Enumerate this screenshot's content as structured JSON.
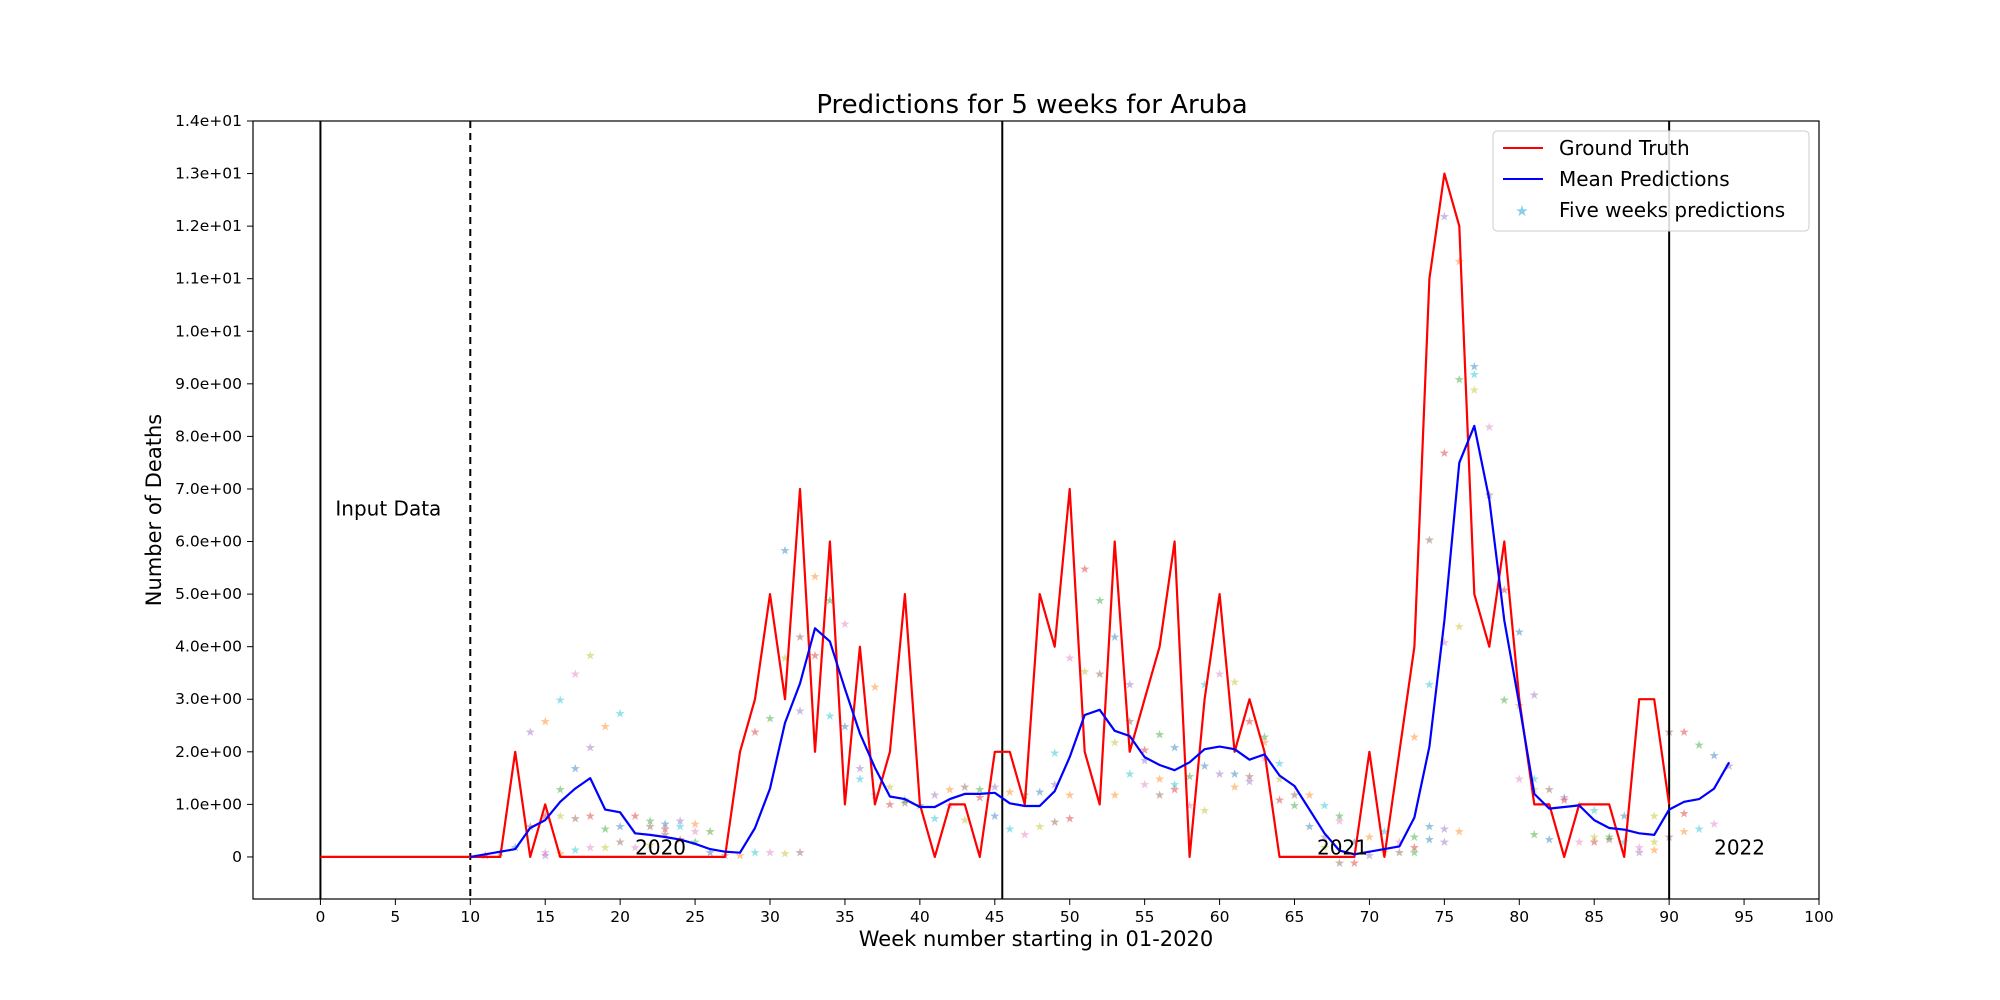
{
  "chart_data": {
    "type": "line",
    "title": "Predictions for 5 weeks for Aruba",
    "xlabel": "Week number starting in 01-2020",
    "ylabel": "Number of Deaths",
    "xlim": [
      -4.5,
      100
    ],
    "ylim": [
      -0.8,
      14
    ],
    "xticks": [
      0,
      5,
      10,
      15,
      20,
      25,
      30,
      35,
      40,
      45,
      50,
      55,
      60,
      65,
      70,
      75,
      80,
      85,
      90,
      95,
      100
    ],
    "xtick_labels": [
      "0",
      "5",
      "10",
      "15",
      "20",
      "25",
      "30",
      "35",
      "40",
      "45",
      "50",
      "55",
      "60",
      "65",
      "70",
      "75",
      "80",
      "85",
      "90",
      "95",
      "100"
    ],
    "yticks": [
      0,
      1,
      2,
      3,
      4,
      5,
      6,
      7,
      8,
      9,
      10,
      11,
      12,
      13,
      14
    ],
    "ytick_labels": [
      "0",
      "1.0e+00",
      "2.0e+00",
      "3.0e+00",
      "4.0e+00",
      "5.0e+00",
      "6.0e+00",
      "7.0e+00",
      "8.0e+00",
      "9.0e+00",
      "1.0e+01",
      "1.1e+01",
      "1.2e+01",
      "1.3e+01",
      "1.4e+01"
    ],
    "grid": false,
    "legend_position": "top-right",
    "vlines": [
      {
        "x": 0,
        "style": "solid"
      },
      {
        "x": 10,
        "style": "dashed"
      },
      {
        "x": 45.5,
        "style": "solid"
      },
      {
        "x": 90,
        "style": "solid"
      }
    ],
    "annotations": [
      {
        "text": "Input Data",
        "x": 1,
        "y": 6.5
      },
      {
        "text": "2020",
        "x": 21,
        "y": 0.05
      },
      {
        "text": "2021",
        "x": 66.5,
        "y": 0.05
      },
      {
        "text": "2022",
        "x": 93,
        "y": 0.05
      }
    ],
    "series": [
      {
        "name": "Ground Truth",
        "color": "#ff0000",
        "style": "line",
        "x": [
          0,
          1,
          2,
          3,
          4,
          5,
          6,
          7,
          8,
          9,
          10,
          11,
          12,
          13,
          14,
          15,
          16,
          17,
          18,
          19,
          20,
          21,
          22,
          23,
          24,
          25,
          26,
          27,
          28,
          29,
          30,
          31,
          32,
          33,
          34,
          35,
          36,
          37,
          38,
          39,
          40,
          41,
          42,
          43,
          44,
          45,
          46,
          47,
          48,
          49,
          50,
          51,
          52,
          53,
          54,
          55,
          56,
          57,
          58,
          59,
          60,
          61,
          62,
          63,
          64,
          65,
          66,
          67,
          68,
          69,
          70,
          71,
          72,
          73,
          74,
          75,
          76,
          77,
          78,
          79,
          80,
          81,
          82,
          83,
          84,
          85,
          86,
          87,
          88,
          89,
          90
        ],
        "y": [
          0,
          0,
          0,
          0,
          0,
          0,
          0,
          0,
          0,
          0,
          0,
          0,
          0,
          2,
          0,
          1,
          0,
          0,
          0,
          0,
          0,
          0,
          0,
          0,
          0,
          0,
          0,
          0,
          2,
          3,
          5,
          3,
          7,
          2,
          6,
          1,
          4,
          1,
          2,
          5,
          1,
          0,
          1,
          1,
          0,
          2,
          2,
          1,
          5,
          4,
          7,
          2,
          1,
          6,
          2,
          3,
          4,
          6,
          0,
          3,
          5,
          2,
          3,
          2,
          0,
          0,
          0,
          0,
          0,
          0,
          2,
          0,
          2,
          4,
          11,
          13,
          12,
          5,
          4,
          6,
          3,
          1,
          1,
          0,
          1,
          1,
          1,
          0,
          3,
          3,
          1
        ]
      },
      {
        "name": "Mean Predictions",
        "color": "#0000ff",
        "style": "line",
        "x": [
          10,
          11,
          12,
          13,
          14,
          15,
          16,
          17,
          18,
          19,
          20,
          21,
          22,
          23,
          24,
          25,
          26,
          27,
          28,
          29,
          30,
          31,
          32,
          33,
          34,
          35,
          36,
          37,
          38,
          39,
          40,
          41,
          42,
          43,
          44,
          45,
          46,
          47,
          48,
          49,
          50,
          51,
          52,
          53,
          54,
          55,
          56,
          57,
          58,
          59,
          60,
          61,
          62,
          63,
          64,
          65,
          66,
          67,
          68,
          69,
          70,
          71,
          72,
          73,
          74,
          75,
          76,
          77,
          78,
          79,
          80,
          81,
          82,
          83,
          84,
          85,
          86,
          87,
          88,
          89,
          90,
          91,
          92,
          93,
          94
        ],
        "y": [
          0,
          0.05,
          0.1,
          0.15,
          0.55,
          0.7,
          1.05,
          1.3,
          1.5,
          0.9,
          0.85,
          0.45,
          0.42,
          0.38,
          0.33,
          0.25,
          0.15,
          0.1,
          0.08,
          0.55,
          1.3,
          2.55,
          3.3,
          4.35,
          4.1,
          3.2,
          2.35,
          1.7,
          1.15,
          1.1,
          0.95,
          0.95,
          1.1,
          1.2,
          1.2,
          1.22,
          1.02,
          0.97,
          0.97,
          1.25,
          1.9,
          2.7,
          2.8,
          2.4,
          2.3,
          1.9,
          1.75,
          1.65,
          1.8,
          2.05,
          2.1,
          2.05,
          1.85,
          1.95,
          1.55,
          1.35,
          0.9,
          0.45,
          0.12,
          0.05,
          0.1,
          0.15,
          0.2,
          0.75,
          2.1,
          4.5,
          7.5,
          8.2,
          6.8,
          4.5,
          2.9,
          1.2,
          0.92,
          0.95,
          0.98,
          0.7,
          0.55,
          0.52,
          0.45,
          0.42,
          0.9,
          1.05,
          1.1,
          1.3,
          1.8
        ]
      },
      {
        "name": "Five weeks predictions",
        "color": "#87ceeb",
        "style": "scatter",
        "palette": [
          "#d62728",
          "#2ca02c",
          "#1f77b4",
          "#9467bd",
          "#ff7f0e",
          "#17becf",
          "#e377c2",
          "#bcbd22",
          "#8c564b"
        ],
        "points": [
          [
            11,
            0.05
          ],
          [
            12,
            0.1
          ],
          [
            13,
            0.2
          ],
          [
            14,
            2.4
          ],
          [
            15,
            2.6
          ],
          [
            16,
            3.0
          ],
          [
            17,
            3.5
          ],
          [
            18,
            3.85
          ],
          [
            14,
            0.6
          ],
          [
            15,
            0.8
          ],
          [
            16,
            1.3
          ],
          [
            17,
            1.7
          ],
          [
            18,
            2.1
          ],
          [
            19,
            2.5
          ],
          [
            20,
            2.75
          ],
          [
            15,
            0.1
          ],
          [
            16,
            0.8
          ],
          [
            17,
            0.75
          ],
          [
            18,
            0.8
          ],
          [
            19,
            0.55
          ],
          [
            20,
            0.6
          ],
          [
            15,
            0.05
          ],
          [
            16,
            0.08
          ],
          [
            17,
            0.15
          ],
          [
            18,
            0.2
          ],
          [
            19,
            0.2
          ],
          [
            20,
            0.3
          ],
          [
            21,
            0.8
          ],
          [
            22,
            0.7
          ],
          [
            23,
            0.65
          ],
          [
            24,
            0.7
          ],
          [
            25,
            0.65
          ],
          [
            26,
            0.5
          ],
          [
            21,
            0.2
          ],
          [
            22,
            0.25
          ],
          [
            23,
            0.45
          ],
          [
            24,
            0.35
          ],
          [
            25,
            0.3
          ],
          [
            26,
            0.1
          ],
          [
            27,
            0.05
          ],
          [
            28,
            0.05
          ],
          [
            29,
            0.1
          ],
          [
            30,
            0.1
          ],
          [
            31,
            0.08
          ],
          [
            32,
            0.1
          ],
          [
            29,
            2.4
          ],
          [
            30,
            2.65
          ],
          [
            31,
            5.85
          ],
          [
            32,
            2.8
          ],
          [
            33,
            5.35
          ],
          [
            34,
            2.7
          ],
          [
            35,
            4.45
          ],
          [
            31,
            3.8
          ],
          [
            32,
            4.2
          ],
          [
            33,
            3.85
          ],
          [
            34,
            4.9
          ],
          [
            35,
            2.5
          ],
          [
            36,
            1.7
          ],
          [
            37,
            3.25
          ],
          [
            36,
            1.5
          ],
          [
            37,
            1.2
          ],
          [
            38,
            1.35
          ],
          [
            39,
            1.05
          ],
          [
            38,
            1.02
          ],
          [
            39,
            1.1
          ],
          [
            40,
            1.0
          ],
          [
            41,
            1.2
          ],
          [
            42,
            1.3
          ],
          [
            41,
            0.75
          ],
          [
            42,
            1.0
          ],
          [
            43,
            0.72
          ],
          [
            43,
            1.35
          ],
          [
            44,
            1.15
          ],
          [
            44,
            1.3
          ],
          [
            45,
            0.8
          ],
          [
            45,
            1.35
          ],
          [
            46,
            1.25
          ],
          [
            46,
            0.55
          ],
          [
            47,
            0.45
          ],
          [
            48,
            0.6
          ],
          [
            49,
            0.68
          ],
          [
            50,
            0.75
          ],
          [
            47,
            1.2
          ],
          [
            48,
            1.25
          ],
          [
            49,
            1.4
          ],
          [
            50,
            1.2
          ],
          [
            49,
            2.0
          ],
          [
            50,
            3.8
          ],
          [
            51,
            3.55
          ],
          [
            52,
            3.5
          ],
          [
            51,
            5.5
          ],
          [
            52,
            4.9
          ],
          [
            53,
            4.2
          ],
          [
            54,
            3.3
          ],
          [
            53,
            1.2
          ],
          [
            54,
            1.6
          ],
          [
            55,
            1.4
          ],
          [
            53,
            2.2
          ],
          [
            54,
            2.6
          ],
          [
            55,
            2.05
          ],
          [
            56,
            2.35
          ],
          [
            57,
            2.1
          ],
          [
            55,
            1.85
          ],
          [
            56,
            1.5
          ],
          [
            57,
            1.4
          ],
          [
            58,
            1.0
          ],
          [
            59,
            0.9
          ],
          [
            56,
            1.2
          ],
          [
            57,
            1.3
          ],
          [
            58,
            1.55
          ],
          [
            59,
            1.75
          ],
          [
            60,
            1.6
          ],
          [
            61,
            1.35
          ],
          [
            59,
            3.3
          ],
          [
            60,
            3.5
          ],
          [
            61,
            3.35
          ],
          [
            62,
            1.55
          ],
          [
            62,
            2.6
          ],
          [
            63,
            2.3
          ],
          [
            61,
            1.6
          ],
          [
            62,
            1.45
          ],
          [
            63,
            2.2
          ],
          [
            64,
            1.8
          ],
          [
            63,
            1.9
          ],
          [
            64,
            1.5
          ],
          [
            65,
            1.2
          ],
          [
            64,
            1.1
          ],
          [
            65,
            1.0
          ],
          [
            66,
            0.6
          ],
          [
            67,
            0.4
          ],
          [
            66,
            1.2
          ],
          [
            67,
            1.0
          ],
          [
            68,
            0.7
          ],
          [
            67,
            0.2
          ],
          [
            68,
            -0.1
          ],
          [
            69,
            -0.1
          ],
          [
            68,
            0.8
          ],
          [
            69,
            0.3
          ],
          [
            70,
            0.05
          ],
          [
            70,
            0.4
          ],
          [
            71,
            0.5
          ],
          [
            72,
            0.3
          ],
          [
            71,
            0.1
          ],
          [
            72,
            0.1
          ],
          [
            73,
            0.2
          ],
          [
            73,
            0.4
          ],
          [
            74,
            0.35
          ],
          [
            75,
            0.3
          ],
          [
            73,
            2.3
          ],
          [
            74,
            3.3
          ],
          [
            75,
            4.1
          ],
          [
            76,
            4.4
          ],
          [
            74,
            6.05
          ],
          [
            75,
            7.7
          ],
          [
            76,
            9.1
          ],
          [
            77,
            9.35
          ],
          [
            75,
            12.2
          ],
          [
            76,
            11.35
          ],
          [
            77,
            9.2
          ],
          [
            78,
            8.2
          ],
          [
            77,
            8.9
          ],
          [
            78,
            6.9
          ],
          [
            79,
            5.1
          ],
          [
            79,
            3.0
          ],
          [
            80,
            4.3
          ],
          [
            81,
            3.1
          ],
          [
            80,
            2.9
          ],
          [
            81,
            1.5
          ],
          [
            80,
            1.5
          ],
          [
            81,
            1.3
          ],
          [
            82,
            1.3
          ],
          [
            83,
            1.1
          ],
          [
            81,
            0.45
          ],
          [
            82,
            0.35
          ],
          [
            83,
            1.15
          ],
          [
            84,
            1.0
          ],
          [
            85,
            0.9
          ],
          [
            84,
            0.3
          ],
          [
            85,
            0.4
          ],
          [
            86,
            0.35
          ],
          [
            85,
            0.3
          ],
          [
            86,
            0.4
          ],
          [
            87,
            0.8
          ],
          [
            88,
            0.1
          ],
          [
            89,
            0.15
          ],
          [
            87,
            0.3
          ],
          [
            88,
            0.2
          ],
          [
            89,
            0.3
          ],
          [
            90,
            2.4
          ],
          [
            91,
            2.4
          ],
          [
            92,
            2.15
          ],
          [
            93,
            1.95
          ],
          [
            94,
            1.75
          ],
          [
            91,
            0.5
          ],
          [
            92,
            0.55
          ],
          [
            93,
            0.65
          ],
          [
            89,
            0.8
          ],
          [
            90,
            0.4
          ],
          [
            91,
            0.85
          ],
          [
            73,
            0.1
          ],
          [
            74,
            0.6
          ],
          [
            75,
            0.55
          ],
          [
            76,
            0.5
          ],
          [
            24,
            0.6
          ],
          [
            25,
            0.5
          ],
          [
            26,
            0.5
          ],
          [
            22,
            0.6
          ],
          [
            23,
            0.55
          ]
        ]
      }
    ]
  }
}
